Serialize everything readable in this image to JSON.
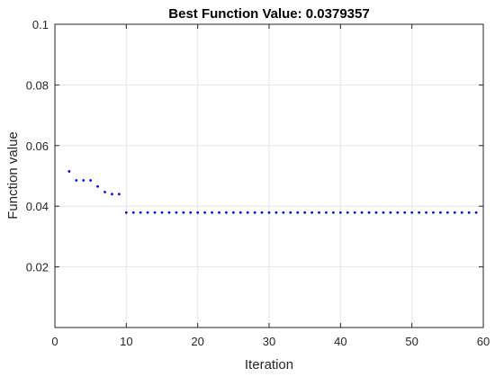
{
  "chart_data": {
    "type": "scatter",
    "title": "Best Function Value: 0.0379357",
    "xlabel": "Iteration",
    "ylabel": "Function value",
    "xlim": [
      0,
      60
    ],
    "ylim": [
      0,
      0.1
    ],
    "xticks": [
      0,
      10,
      20,
      30,
      40,
      50,
      60
    ],
    "xtick_labels": [
      "0",
      "10",
      "20",
      "30",
      "40",
      "50",
      "60"
    ],
    "yticks": [
      0.02,
      0.04,
      0.06,
      0.08,
      0.1
    ],
    "ytick_labels": [
      "0.02",
      "0.04",
      "0.06",
      "0.08",
      "0.1"
    ],
    "grid": true,
    "marker_color": "#0000ff",
    "series": [
      {
        "x": [
          2,
          3,
          4,
          5,
          6,
          7,
          8,
          9,
          10,
          11,
          12,
          13,
          14,
          15,
          16,
          17,
          18,
          19,
          20,
          21,
          22,
          23,
          24,
          25,
          26,
          27,
          28,
          29,
          30,
          31,
          32,
          33,
          34,
          35,
          36,
          37,
          38,
          39,
          40,
          41,
          42,
          43,
          44,
          45,
          46,
          47,
          48,
          49,
          50,
          51,
          52,
          53,
          54,
          55,
          56,
          57,
          58,
          59
        ],
        "y": [
          0.0515,
          0.0485,
          0.0485,
          0.0485,
          0.0465,
          0.0447,
          0.044,
          0.044,
          0.0379,
          0.0379,
          0.0379,
          0.0379,
          0.0379,
          0.0379,
          0.0379,
          0.0379,
          0.0379,
          0.0379,
          0.0379,
          0.0379,
          0.0379,
          0.0379,
          0.0379,
          0.0379,
          0.0379,
          0.0379,
          0.0379,
          0.0379,
          0.0379,
          0.0379,
          0.0379,
          0.0379,
          0.0379,
          0.0379,
          0.0379,
          0.0379,
          0.0379,
          0.0379,
          0.0379,
          0.0379,
          0.0379,
          0.0379,
          0.0379,
          0.0379,
          0.0379,
          0.0379,
          0.0379,
          0.0379,
          0.0379,
          0.0379,
          0.0379,
          0.0379,
          0.0379,
          0.0379,
          0.0379,
          0.0379,
          0.0379,
          0.0379
        ]
      }
    ]
  }
}
